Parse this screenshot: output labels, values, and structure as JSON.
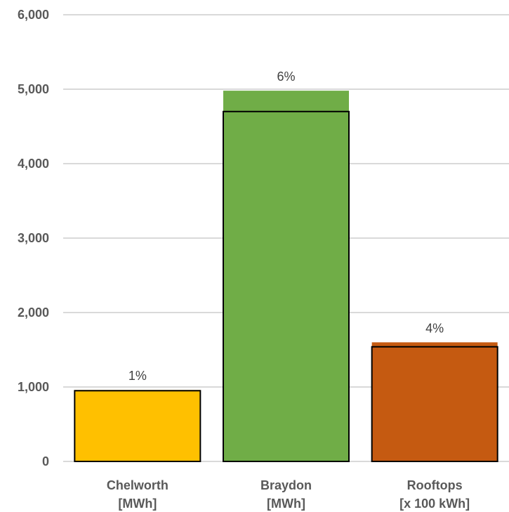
{
  "chart_data": {
    "type": "bar",
    "categories": [
      {
        "line1": "Chelworth",
        "line2": "[MWh]"
      },
      {
        "line1": "Braydon",
        "line2": "[MWh]"
      },
      {
        "line1": "Rooftops",
        "line2": "[x 100 kWh]"
      }
    ],
    "series": [
      {
        "values": [
          950,
          4700,
          1540
        ]
      },
      {
        "values": [
          960,
          4980,
          1600
        ]
      }
    ],
    "data_labels": [
      "1%",
      "6%",
      "4%"
    ],
    "colors": [
      "#ffc000",
      "#70ad47",
      "#c55a11"
    ],
    "ylim": [
      0,
      6000
    ],
    "yticks": [
      "0",
      "1,000",
      "2,000",
      "3,000",
      "4,000",
      "5,000",
      "6,000"
    ],
    "tick_values": [
      0,
      1000,
      2000,
      3000,
      4000,
      5000,
      6000
    ],
    "grid": true,
    "legend": "none"
  }
}
